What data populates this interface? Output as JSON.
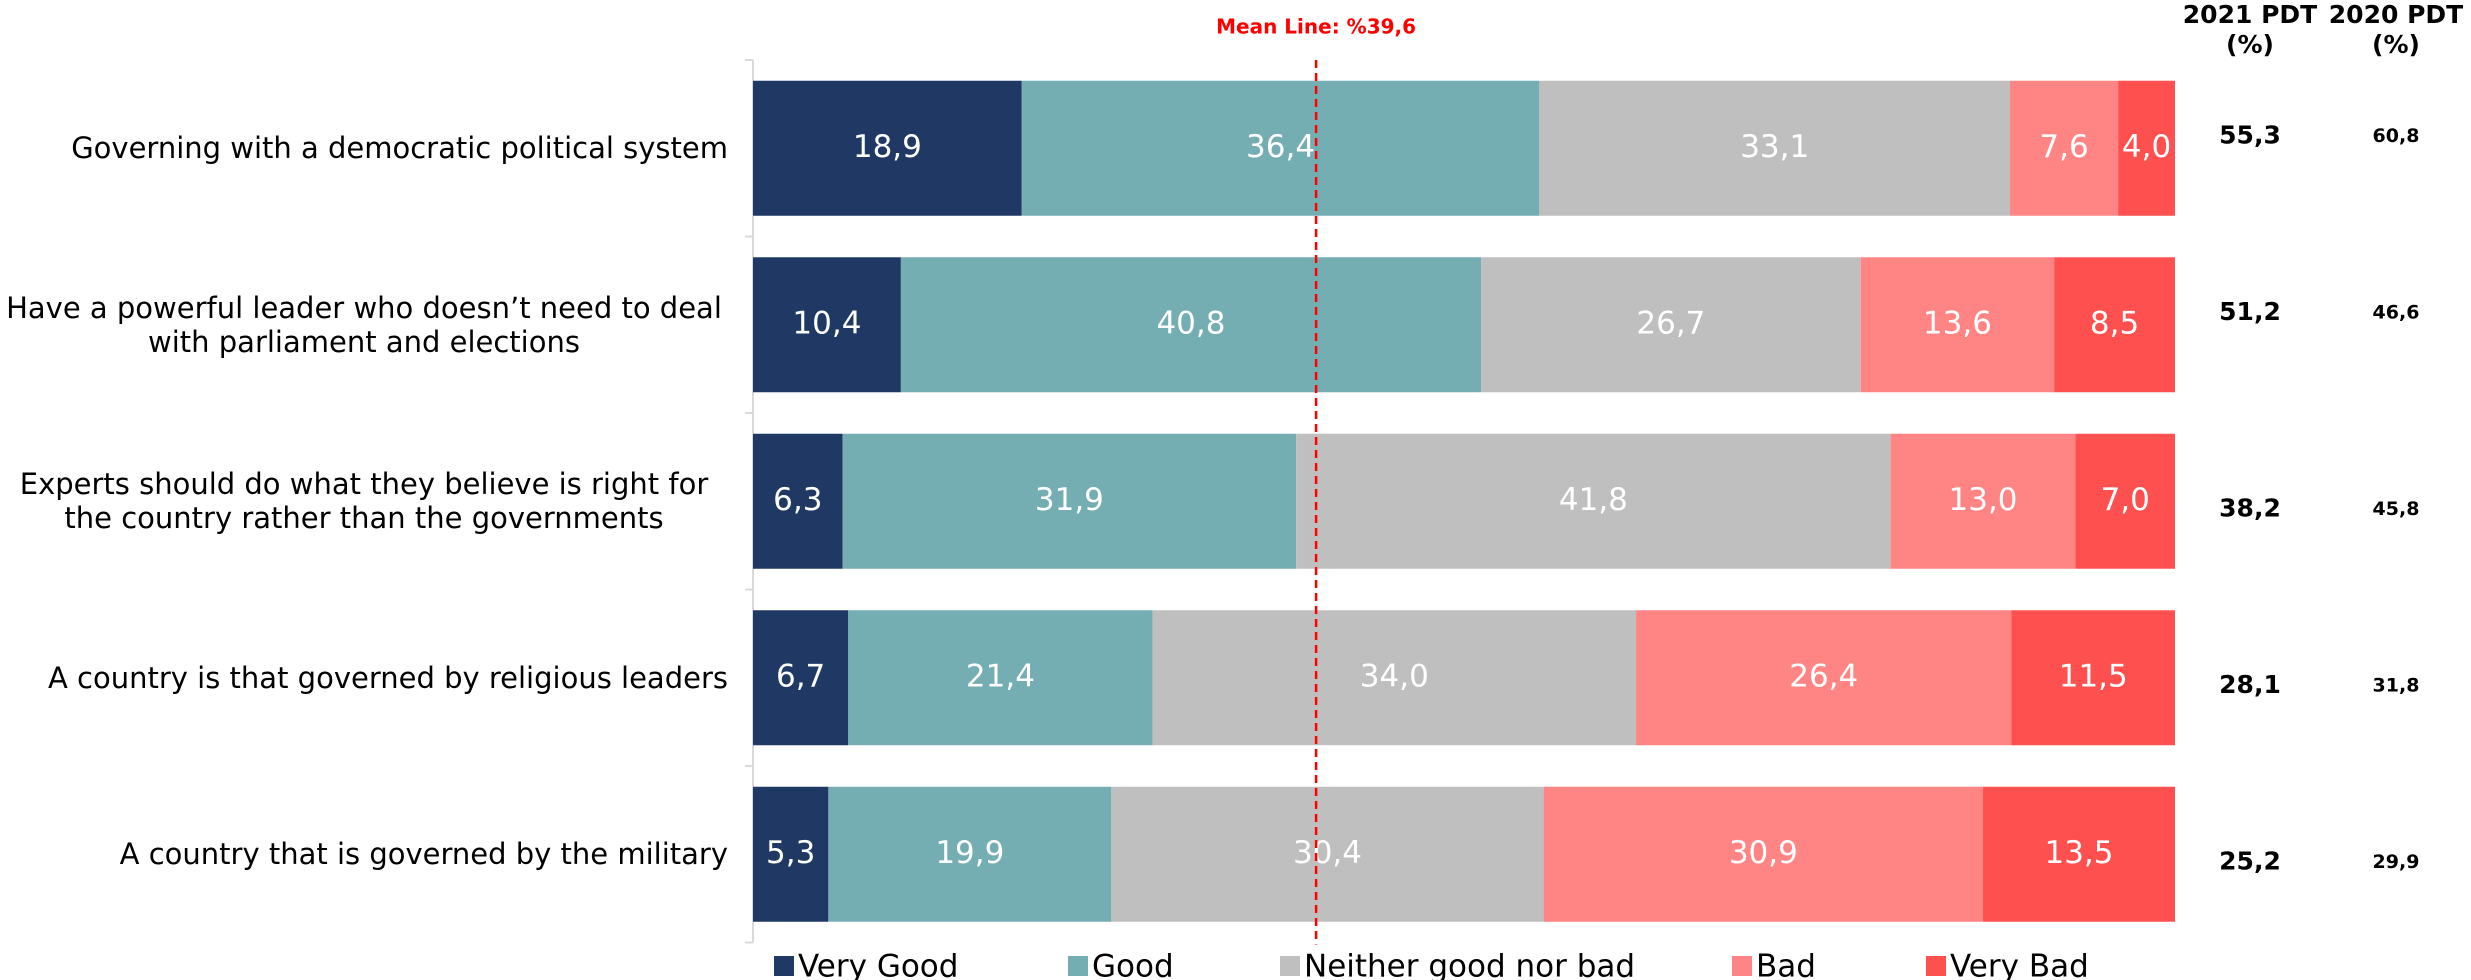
{
  "chart_data": {
    "type": "stacked-bar-horizontal",
    "categories": [
      "Governing with a democratic political system",
      "Have a powerful leader who doesn’t need to deal with parliament and elections",
      "Experts should do what they believe is right for the country rather than the governments",
      "A country is that governed by religious leaders",
      "A country that is governed by the military"
    ],
    "series": [
      {
        "name": "Very Good",
        "color": "#203864",
        "values": [
          18.9,
          10.4,
          6.3,
          6.7,
          5.3
        ],
        "value_labels": [
          "18,9",
          "10,4",
          "6,3",
          "6,7",
          "5,3"
        ]
      },
      {
        "name": "Good",
        "color": "#74adb2",
        "values": [
          36.4,
          40.8,
          31.9,
          21.4,
          19.9
        ],
        "value_labels": [
          "36,4",
          "40,8",
          "31,9",
          "21,4",
          "19,9"
        ]
      },
      {
        "name": "Neither good nor bad",
        "color": "#bfbfbf",
        "values": [
          33.1,
          26.7,
          41.8,
          34.0,
          30.4
        ],
        "value_labels": [
          "33,1",
          "26,7",
          "41,8",
          "34,0",
          "30,4"
        ]
      },
      {
        "name": "Bad",
        "color": "#ff8585",
        "values": [
          7.6,
          13.6,
          13.0,
          26.4,
          30.9
        ],
        "value_labels": [
          "7,6",
          "13,6",
          "13,0",
          "26,4",
          "30,9"
        ]
      },
      {
        "name": "Very Bad",
        "color": "#ff5050",
        "values": [
          4.0,
          8.5,
          7.0,
          11.5,
          13.5
        ],
        "value_labels": [
          "4,0",
          "8,5",
          "7,0",
          "11,5",
          "13,5"
        ]
      }
    ],
    "xlim": [
      0,
      100
    ],
    "mean_line": {
      "value": 39.6,
      "label": "Mean Line: %39,6",
      "color": "#ff0000"
    },
    "columns": [
      {
        "title": [
          "2021 PDT",
          "(%)"
        ],
        "values": [
          55.3,
          51.2,
          38.2,
          28.1,
          25.2
        ],
        "value_labels": [
          "55,3",
          "51,2",
          "38,2",
          "28,1",
          "25,2"
        ]
      },
      {
        "title": [
          "2020 PDT",
          "(%)"
        ],
        "values": [
          60.8,
          46.6,
          45.8,
          31.8,
          29.9
        ],
        "value_labels": [
          "60,8",
          "46,6",
          "45,8",
          "31,8",
          "29,9"
        ]
      }
    ],
    "legend": "bottom"
  }
}
